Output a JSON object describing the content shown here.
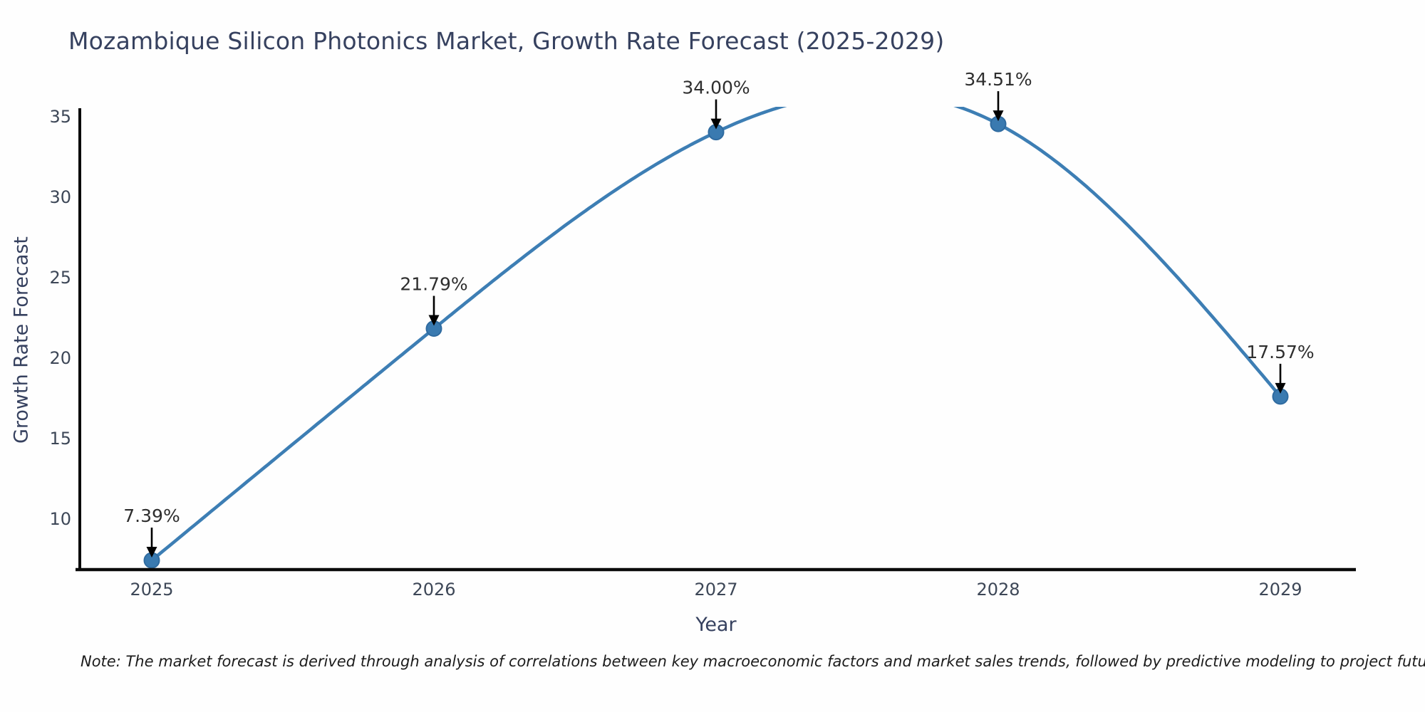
{
  "header": {
    "title": "Mozambique Silicon Photonics Market, Growth Rate Forecast (2025-2029)"
  },
  "chart_data": {
    "type": "line",
    "title": "Mozambique Silicon Photonics Market, Growth Rate Forecast (2025-2029)",
    "xlabel": "Year",
    "ylabel": "Growth Rate Forecast",
    "x": [
      2025,
      2026,
      2027,
      2028,
      2029
    ],
    "values": [
      7.39,
      21.79,
      34.0,
      34.51,
      17.57
    ],
    "point_labels": [
      "7.39%",
      "21.79%",
      "34.00%",
      "34.51%",
      "17.57%"
    ],
    "xticks": [
      "2025",
      "2026",
      "2027",
      "2028",
      "2029"
    ],
    "yticks": [
      10,
      15,
      20,
      25,
      30,
      35
    ],
    "ylim": [
      6.8,
      35.6
    ],
    "grid": false,
    "legend": "none",
    "curve_style": "smooth cubic spline, clipped at plot top between 2027 and 2028",
    "line_color": "#3d7eb4",
    "marker_color": "#3a7ab0",
    "marker_edge_color": "#2f6ba0",
    "annotation_arrow_color": "#000000",
    "axis_color": "#0a0a0a",
    "tick_color": "#3d4757",
    "title_color": "#36415f"
  },
  "footnote": {
    "text": "Note: The market forecast is derived through analysis of correlations between key macroeconomic factors and market sales trends, followed by predictive modeling to project future sales"
  }
}
